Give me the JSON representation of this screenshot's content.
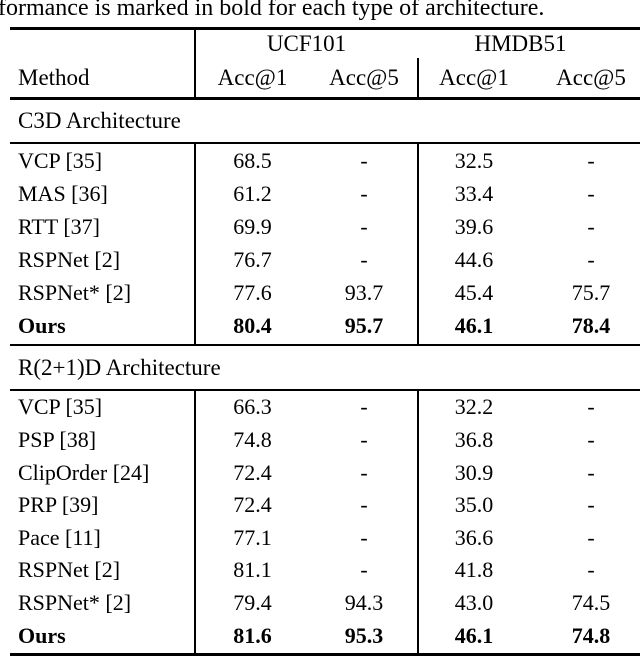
{
  "colors": {
    "text": "#000000",
    "rule": "#000000",
    "background": "#ffffff"
  },
  "caption": "formance is marked in bold for each type of architecture.",
  "table": {
    "group_headers": {
      "ucf101": "UCF101",
      "hmdb51": "HMDB51"
    },
    "method_header": "Method",
    "acc_headers": [
      "Acc@1",
      "Acc@5",
      "Acc@1",
      "Acc@5"
    ],
    "sections": [
      {
        "title": "C3D Architecture",
        "rows": [
          {
            "method": "VCP [35]",
            "values": [
              "68.5",
              "-",
              "32.5",
              "-"
            ],
            "bold": false
          },
          {
            "method": "MAS [36]",
            "values": [
              "61.2",
              "-",
              "33.4",
              "-"
            ],
            "bold": false
          },
          {
            "method": "RTT [37]",
            "values": [
              "69.9",
              "-",
              "39.6",
              "-"
            ],
            "bold": false
          },
          {
            "method": "RSPNet [2]",
            "values": [
              "76.7",
              "-",
              "44.6",
              "-"
            ],
            "bold": false
          },
          {
            "method": "RSPNet* [2]",
            "values": [
              "77.6",
              "93.7",
              "45.4",
              "75.7"
            ],
            "bold": false
          },
          {
            "method": "Ours",
            "values": [
              "80.4",
              "95.7",
              "46.1",
              "78.4"
            ],
            "bold": true
          }
        ]
      },
      {
        "title": "R(2+1)D Architecture",
        "rows": [
          {
            "method": "VCP [35]",
            "values": [
              "66.3",
              "-",
              "32.2",
              "-"
            ],
            "bold": false
          },
          {
            "method": "PSP [38]",
            "values": [
              "74.8",
              "-",
              "36.8",
              "-"
            ],
            "bold": false
          },
          {
            "method": "ClipOrder [24]",
            "values": [
              "72.4",
              "-",
              "30.9",
              "-"
            ],
            "bold": false
          },
          {
            "method": "PRP [39]",
            "values": [
              "72.4",
              "-",
              "35.0",
              "-"
            ],
            "bold": false
          },
          {
            "method": "Pace [11]",
            "values": [
              "77.1",
              "-",
              "36.6",
              "-"
            ],
            "bold": false
          },
          {
            "method": "RSPNet [2]",
            "values": [
              "81.1",
              "-",
              "41.8",
              "-"
            ],
            "bold": false
          },
          {
            "method": "RSPNet* [2]",
            "values": [
              "79.4",
              "94.3",
              "43.0",
              "74.5"
            ],
            "bold": false
          },
          {
            "method": "Ours",
            "values": [
              "81.6",
              "95.3",
              "46.1",
              "74.8"
            ],
            "bold": true
          }
        ]
      }
    ]
  }
}
